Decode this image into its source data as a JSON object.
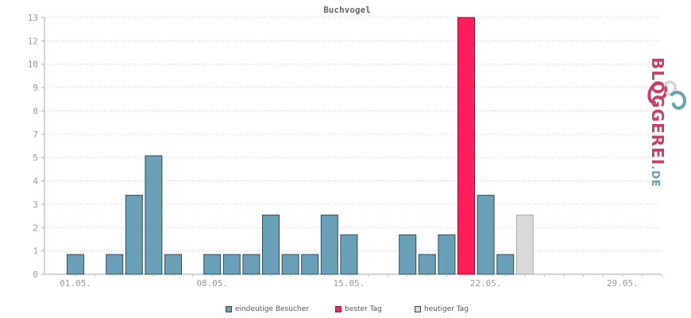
{
  "chart_data": {
    "type": "bar",
    "title": "Buchvogel",
    "ylim": [
      0,
      13
    ],
    "y_ticks": [
      "0",
      "1",
      "2",
      "3",
      "4",
      "5",
      "7",
      "8",
      "9",
      "10",
      "12",
      "13"
    ],
    "x_tick_labels": [
      "01.05.",
      "08.05.",
      "15.05.",
      "22.05.",
      "29.05."
    ],
    "grid": true,
    "legend_position": "bottom-center",
    "categories": [
      "01.05.",
      "02.05.",
      "03.05.",
      "04.05.",
      "05.05.",
      "06.05.",
      "07.05.",
      "08.05.",
      "09.05.",
      "10.05.",
      "11.05.",
      "12.05.",
      "13.05.",
      "14.05.",
      "15.05.",
      "16.05.",
      "17.05.",
      "18.05.",
      "19.05.",
      "20.05.",
      "21.05.",
      "22.05.",
      "23.05.",
      "24.05.",
      "25.05.",
      "26.05.",
      "27.05.",
      "28.05.",
      "29.05.",
      "30.05.",
      "31.05."
    ],
    "series": [
      {
        "name": "eindeutige Besucher",
        "color": "#6a9fb8",
        "values": [
          1,
          0,
          1,
          4,
          6,
          1,
          0,
          1,
          1,
          1,
          3,
          1,
          1,
          3,
          2,
          0,
          0,
          2,
          1,
          2,
          0,
          4,
          1,
          0,
          0,
          0,
          0,
          0,
          0,
          0,
          0
        ]
      },
      {
        "name": "bester Tag",
        "color": "#ff1e5a",
        "values": [
          0,
          0,
          0,
          0,
          0,
          0,
          0,
          0,
          0,
          0,
          0,
          0,
          0,
          0,
          0,
          0,
          0,
          0,
          0,
          0,
          13,
          0,
          0,
          0,
          0,
          0,
          0,
          0,
          0,
          0,
          0
        ]
      },
      {
        "name": "heutiger Tag",
        "color": "#d8d8d8",
        "values": [
          0,
          0,
          0,
          0,
          0,
          0,
          0,
          0,
          0,
          0,
          0,
          0,
          0,
          0,
          0,
          0,
          0,
          0,
          0,
          0,
          0,
          0,
          0,
          3,
          0,
          0,
          0,
          0,
          0,
          0,
          0
        ]
      }
    ]
  },
  "legend": {
    "items": [
      {
        "label": "eindeutige Besucher",
        "color": "#6a9fb8"
      },
      {
        "label": "bester Tag",
        "color": "#ff1e5a"
      },
      {
        "label": "heutiger Tag",
        "color": "#d8d8d8"
      }
    ]
  },
  "logo": {
    "text_main": "BLOGGEREI",
    "text_suffix": ".DE",
    "color_main": "#c8406a",
    "color_suffix": "#6a9fb8"
  }
}
